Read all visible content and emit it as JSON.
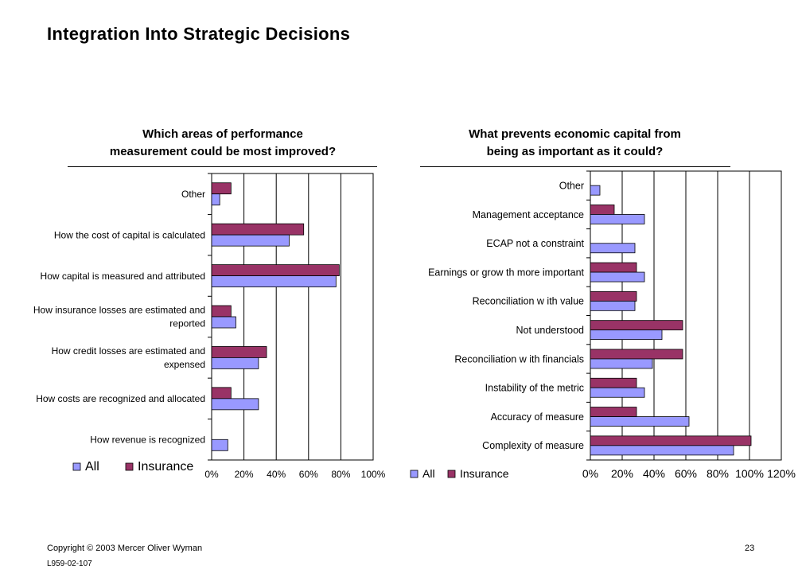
{
  "title": "Integration Into Strategic Decisions",
  "footer": {
    "copyright": "Copyright © 2003 Mercer Oliver Wyman",
    "code": "L959-02-107",
    "page_number": "23"
  },
  "colors": {
    "all": "#9999FF",
    "insurance": "#993366"
  },
  "chart_data": [
    {
      "type": "bar",
      "orientation": "horizontal",
      "title_lines": [
        "Which areas of performance",
        "measurement  could be most improved?"
      ],
      "categories": [
        "Other",
        "How the cost of capital is calculated",
        "How capital is measured and attributed",
        "How insurance losses are estimated and reported",
        "How credit losses are estimated and expensed",
        "How costs are recognized and allocated",
        "How revenue is recognized"
      ],
      "category_lines": [
        [
          "Other"
        ],
        [
          "How the cost of capital is calculated"
        ],
        [
          "How capital is measured and attributed"
        ],
        [
          "How insurance losses are estimated and",
          "reported"
        ],
        [
          "How credit losses are estimated and",
          "expensed"
        ],
        [
          "How costs are recognized and allocated"
        ],
        [
          "How revenue is recognized"
        ]
      ],
      "series": [
        {
          "name": "All",
          "values": [
            5,
            48,
            77,
            15,
            29,
            29,
            10
          ]
        },
        {
          "name": "Insurance",
          "values": [
            12,
            57,
            79,
            12,
            34,
            12,
            0
          ]
        }
      ],
      "xlim": [
        0,
        100
      ],
      "xticks": [
        "0%",
        "20%",
        "40%",
        "60%",
        "80%",
        "100%"
      ],
      "grid": true,
      "legend": "bottom-left"
    },
    {
      "type": "bar",
      "orientation": "horizontal",
      "title_lines": [
        "What prevents economic capital from",
        "being as important as it could?"
      ],
      "categories": [
        "Other",
        "Management acceptance",
        "ECAP not a constraint",
        "Earnings or grow th more important",
        "Reconciliation w ith value",
        "Not understood",
        "Reconciliation w ith financials",
        "Instability of the metric",
        "Accuracy of measure",
        "Complexity of measure"
      ],
      "series": [
        {
          "name": "All",
          "values": [
            6,
            34,
            28,
            34,
            28,
            45,
            39,
            34,
            62,
            90
          ]
        },
        {
          "name": "Insurance",
          "values": [
            0,
            15,
            0,
            29,
            29,
            58,
            58,
            29,
            29,
            101
          ]
        }
      ],
      "xlim": [
        0,
        120
      ],
      "xticks": [
        "0%",
        "20%",
        "40%",
        "60%",
        "80%",
        "100%",
        "120%"
      ],
      "grid": true,
      "legend": "bottom-left"
    }
  ]
}
